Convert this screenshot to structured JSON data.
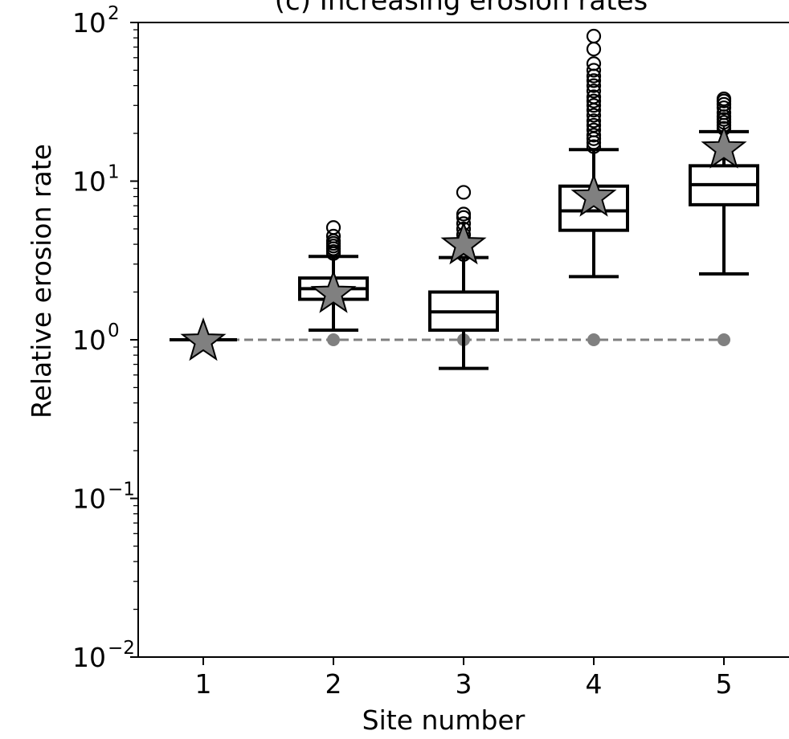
{
  "chart_data": {
    "type": "box",
    "title": "(c) Increasing erosion rates",
    "xlabel": "Site number",
    "ylabel": "Relative erosion rate",
    "yscale": "log",
    "ylim": [
      0.01,
      100
    ],
    "xlim": [
      0.5,
      5.5
    ],
    "categories": [
      "1",
      "2",
      "3",
      "4",
      "5"
    ],
    "y_ticks": [
      {
        "value": 0.01,
        "base": "10",
        "exp": "−2"
      },
      {
        "value": 0.1,
        "base": "10",
        "exp": "−1"
      },
      {
        "value": 1,
        "base": "10",
        "exp": "0"
      },
      {
        "value": 10,
        "base": "10",
        "exp": "1"
      },
      {
        "value": 100,
        "base": "10",
        "exp": "2"
      }
    ],
    "boxes": [
      {
        "site": 1,
        "whislo": 1.0,
        "q1": 1.0,
        "med": 1.0,
        "q3": 1.0,
        "whishi": 1.0,
        "fliers": []
      },
      {
        "site": 2,
        "whislo": 1.15,
        "q1": 1.8,
        "med": 2.1,
        "q3": 2.45,
        "whishi": 3.35,
        "fliers": [
          3.5,
          3.6,
          3.75,
          3.9,
          4.05,
          4.2,
          4.5,
          5.1
        ]
      },
      {
        "site": 3,
        "whislo": 0.66,
        "q1": 1.15,
        "med": 1.5,
        "q3": 2.0,
        "whishi": 3.3,
        "fliers": [
          3.45,
          3.6,
          3.8,
          4.0,
          4.3,
          4.6,
          5.0,
          5.4,
          5.9,
          6.2,
          8.5
        ]
      },
      {
        "site": 4,
        "whislo": 2.5,
        "q1": 4.9,
        "med": 6.5,
        "q3": 9.3,
        "whishi": 15.8,
        "fliers": [
          16.5,
          17.5,
          18.5,
          19.5,
          21,
          22.5,
          24,
          26,
          28,
          30,
          32,
          34,
          37,
          40,
          43,
          46,
          50,
          55,
          68,
          82
        ]
      },
      {
        "site": 5,
        "whislo": 2.6,
        "q1": 7.1,
        "med": 9.5,
        "q3": 12.5,
        "whishi": 20.5,
        "fliers": [
          21.5,
          22.5,
          23.5,
          24.5,
          25.5,
          27,
          29,
          30.5,
          32,
          33
        ]
      }
    ],
    "stars": [
      {
        "site": 1,
        "value": 1.0
      },
      {
        "site": 2,
        "value": 2.0
      },
      {
        "site": 3,
        "value": 4.05
      },
      {
        "site": 4,
        "value": 8.1
      },
      {
        "site": 5,
        "value": 16.3
      }
    ],
    "reference_line": {
      "value": 1.0,
      "style": "dashed",
      "color": "#808080",
      "markers_at_sites": [
        2,
        3,
        4,
        5
      ]
    },
    "colors": {
      "star_fill": "#808080",
      "box_edge": "#000000",
      "reference": "#808080"
    }
  }
}
